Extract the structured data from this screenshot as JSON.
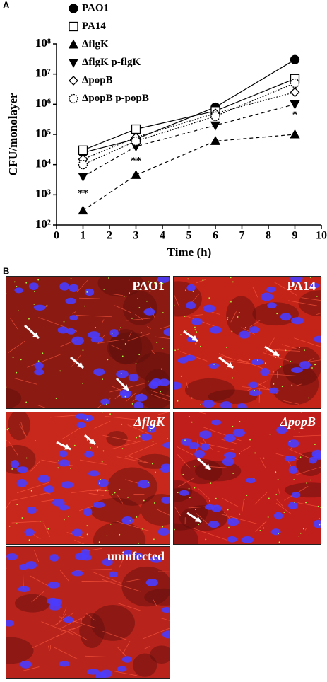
{
  "chart_data": {
    "type": "line",
    "log_y": true,
    "ylabel": "CFU/monolayer",
    "xlabel": "Time (h)",
    "x": [
      1,
      3,
      6,
      9
    ],
    "xlim": [
      0,
      10
    ],
    "xticks": [
      0,
      1,
      2,
      3,
      4,
      5,
      6,
      7,
      8,
      9,
      10
    ],
    "ylim": [
      100,
      100000000
    ],
    "yticks": [
      {
        "value": 100,
        "label": "10²"
      },
      {
        "value": 1000,
        "label": "10³"
      },
      {
        "value": 10000,
        "label": "10⁴"
      },
      {
        "value": 100000,
        "label": "10⁵"
      },
      {
        "value": 1000000,
        "label": "10⁶"
      },
      {
        "value": 10000000,
        "label": "10⁷"
      },
      {
        "value": 100000000,
        "label": "10⁸"
      }
    ],
    "grid": false,
    "series": [
      {
        "name": "PAO1",
        "color": "#000000",
        "marker": "circle",
        "filled": true,
        "line_style": "solid",
        "values": [
          25000,
          70000,
          800000,
          30000000
        ]
      },
      {
        "name": "PA14",
        "color": "#000000",
        "marker": "square",
        "filled": false,
        "line_style": "solid",
        "values": [
          30000,
          150000,
          600000,
          7000000
        ]
      },
      {
        "name": "ΔflgK",
        "color": "#000000",
        "marker": "triangle",
        "filled": true,
        "line_style": "dashed",
        "values": [
          300,
          4500,
          60000,
          100000
        ]
      },
      {
        "name": "ΔflgK p-flgK",
        "color": "#000000",
        "marker": "triangle-down",
        "filled": true,
        "line_style": "dashed",
        "values": [
          4000,
          40000,
          200000,
          1000000
        ]
      },
      {
        "name": "ΔpopB",
        "color": "#000000",
        "marker": "diamond",
        "filled": false,
        "line_style": "dotted",
        "values": [
          15000,
          80000,
          500000,
          2500000
        ]
      },
      {
        "name": "ΔpopB p-popB",
        "color": "#000000",
        "marker": "dotted-circle",
        "filled": false,
        "line_style": "dotted",
        "values": [
          10000,
          60000,
          400000,
          5000000
        ]
      }
    ],
    "annotations": [
      "**",
      "**",
      "*"
    ]
  },
  "panels": {
    "a_label": "A",
    "b_label": "B",
    "images": [
      {
        "label": "PAO1"
      },
      {
        "label": "PA14"
      },
      {
        "label": "ΔflgK"
      },
      {
        "label": "ΔpopB"
      },
      {
        "label": "uninfected"
      }
    ]
  }
}
